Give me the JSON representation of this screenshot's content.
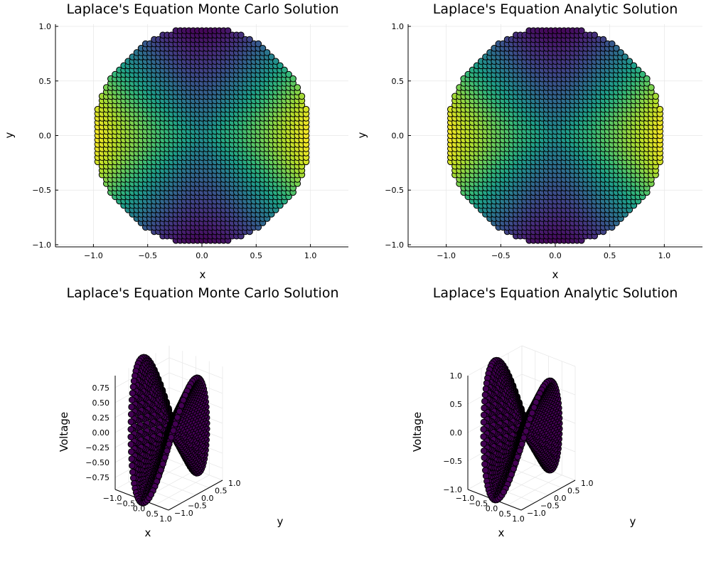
{
  "colors": {
    "grid": "#e6e6e6",
    "axis": "#000000",
    "marker_edge": "#000000",
    "surface_marker": "#440154",
    "viridis": [
      "#440154",
      "#482878",
      "#3e4989",
      "#31688e",
      "#26828e",
      "#1f9e89",
      "#35b779",
      "#6ece58",
      "#b5de2b",
      "#fde725"
    ]
  },
  "chart_data": [
    {
      "type": "scatter",
      "variant": "heatmap-scatter",
      "title": "Laplace's Equation Monte Carlo Solution",
      "xlabel": "x",
      "ylabel": "y",
      "xlim": [
        -1.35,
        1.35
      ],
      "ylim": [
        -1.02,
        1.02
      ],
      "xticks": [
        "−1.0",
        "−0.5",
        "0.0",
        "0.5",
        "1.0"
      ],
      "yticks": [
        "−1.0",
        "−0.5",
        "0.0",
        "0.5",
        "1.0"
      ],
      "grid": true,
      "legend": "none",
      "domain": "unit disk, grid spacing 0.04",
      "value_function": "cos(2·atan2(y,x))·sqrt(x²+y²)",
      "colormap": "viridis"
    },
    {
      "type": "scatter",
      "variant": "heatmap-scatter",
      "title": "Laplace's Equation Analytic Solution",
      "xlabel": "x",
      "ylabel": "y",
      "xlim": [
        -1.35,
        1.35
      ],
      "ylim": [
        -1.02,
        1.02
      ],
      "xticks": [
        "−1.0",
        "−0.5",
        "0.0",
        "0.5",
        "1.0"
      ],
      "yticks": [
        "−1.0",
        "−0.5",
        "0.0",
        "0.5",
        "1.0"
      ],
      "grid": true,
      "legend": "none",
      "domain": "unit disk, grid spacing 0.04",
      "value_function": "cos(2·atan2(y,x))·sqrt(x²+y²)",
      "colormap": "viridis"
    },
    {
      "type": "scatter",
      "variant": "3d-scatter",
      "title": "Laplace's Equation Monte Carlo Solution",
      "xlabel": "x",
      "ylabel": "y",
      "zlabel": "Voltage",
      "xlim": [
        -1.0,
        1.0
      ],
      "ylim": [
        -1.0,
        1.0
      ],
      "zlim": [
        -0.95,
        0.95
      ],
      "xticks": [
        "−1.0",
        "−0.5",
        "0.0",
        "0.5",
        "1.0"
      ],
      "yticks": [
        "−1.0",
        "−0.5",
        "0.0",
        "0.5",
        "1.0"
      ],
      "zticks": [
        "−0.75",
        "−0.50",
        "−0.25",
        "0.00",
        "0.25",
        "0.50",
        "0.75"
      ],
      "grid": true,
      "legend": "none",
      "value_function": "cos(2·atan2(y,x))·sqrt(x²+y²)"
    },
    {
      "type": "scatter",
      "variant": "3d-scatter",
      "title": "Laplace's Equation Analytic Solution",
      "xlabel": "x",
      "ylabel": "y",
      "zlabel": "Voltage",
      "xlim": [
        -1.0,
        1.0
      ],
      "ylim": [
        -1.0,
        1.0
      ],
      "zlim": [
        -1.0,
        1.0
      ],
      "xticks": [
        "−1.0",
        "−0.5",
        "0.0",
        "0.5",
        "1.0"
      ],
      "yticks": [
        "−1.0",
        "−0.5",
        "0.0",
        "0.5",
        "1.0"
      ],
      "zticks": [
        "−1.0",
        "−0.5",
        "0.0",
        "0.5",
        "1.0"
      ],
      "grid": true,
      "legend": "none",
      "value_function": "cos(2·atan2(y,x))·sqrt(x²+y²)"
    }
  ]
}
